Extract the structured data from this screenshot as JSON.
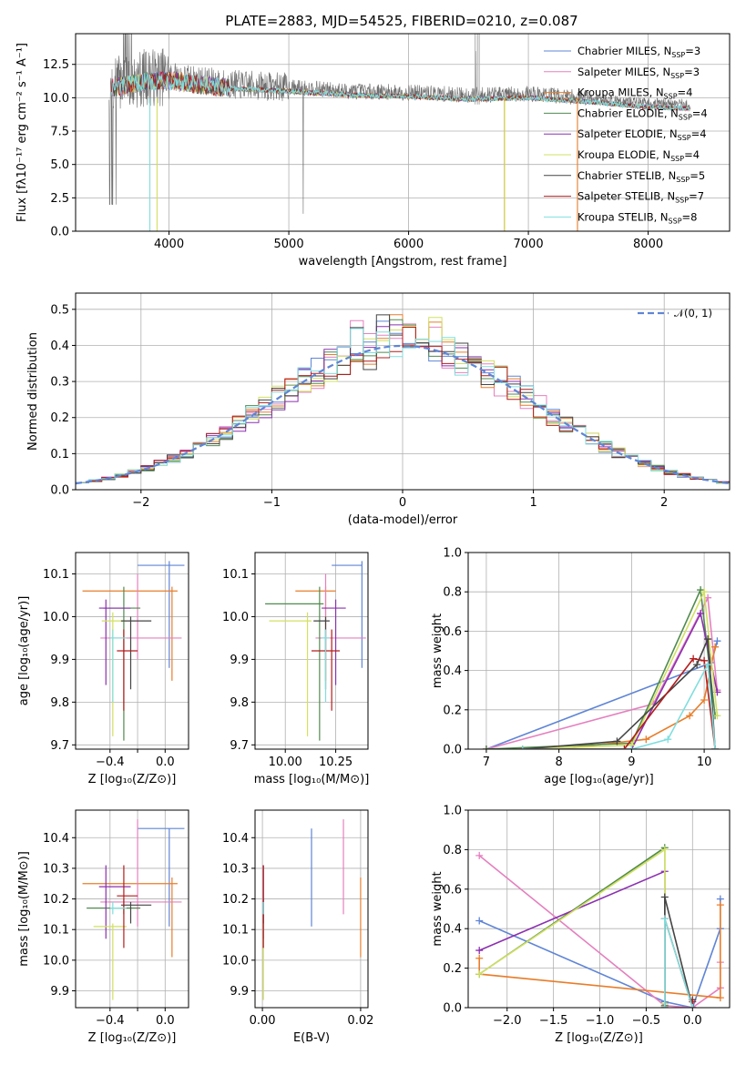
{
  "title": "PLATE=2883, MJD=54525, FIBERID=0210, z=0.087",
  "models": [
    {
      "key": "cm",
      "label": "Chabrier MILES, N",
      "sub": "SSP",
      "n": "=3",
      "color": "#5f85d6"
    },
    {
      "key": "sm",
      "label": "Salpeter MILES, N",
      "sub": "SSP",
      "n": "=3",
      "color": "#e580bf"
    },
    {
      "key": "km",
      "label": "Kroupa MILES, N",
      "sub": "SSP",
      "n": "=4",
      "color": "#e87d2a"
    },
    {
      "key": "ce",
      "label": "Chabrier ELODIE, N",
      "sub": "SSP",
      "n": "=4",
      "color": "#4f8a4f"
    },
    {
      "key": "se",
      "label": "Salpeter ELODIE, N",
      "sub": "SSP",
      "n": "=4",
      "color": "#8b30b0"
    },
    {
      "key": "ke",
      "label": "Kroupa ELODIE, N",
      "sub": "SSP",
      "n": "=4",
      "color": "#d2e060"
    },
    {
      "key": "cs",
      "label": "Chabrier STELIB, N",
      "sub": "SSP",
      "n": "=5",
      "color": "#444444"
    },
    {
      "key": "ss",
      "label": "Salpeter STELIB, N",
      "sub": "SSP",
      "n": "=7",
      "color": "#b41c1c"
    },
    {
      "key": "ks",
      "label": "Kroupa STELIB, N",
      "sub": "SSP",
      "n": "=8",
      "color": "#80dede"
    }
  ],
  "chart_data": [
    {
      "id": "spectrum",
      "type": "line",
      "xlabel": "wavelength [Angstrom, rest frame]",
      "ylabel": "Flux [fλ10⁻¹⁷ erg cm⁻² s⁻¹ A⁻¹]",
      "xlim": [
        3220,
        8680
      ],
      "ylim": [
        0,
        14.8
      ],
      "xticks": [
        4000,
        5000,
        6000,
        7000,
        8000
      ],
      "yticks": [
        0.0,
        2.5,
        5.0,
        7.5,
        10.0,
        12.5
      ],
      "data_range": [
        3500,
        8350
      ],
      "continuum": [
        [
          3500,
          11.0
        ],
        [
          3800,
          11.5
        ],
        [
          4000,
          11.6
        ],
        [
          4500,
          11.0
        ],
        [
          5000,
          10.8
        ],
        [
          5500,
          10.5
        ],
        [
          6000,
          10.4
        ],
        [
          6500,
          10.2
        ],
        [
          7000,
          10.3
        ],
        [
          7500,
          10.0
        ],
        [
          8000,
          9.6
        ],
        [
          8350,
          9.5
        ]
      ]
    },
    {
      "id": "residuals",
      "type": "histogram",
      "xlabel": "(data-model)/error",
      "ylabel": "Normed distribution",
      "xlim": [
        -2.5,
        2.5
      ],
      "ylim": [
        0,
        0.545
      ],
      "xticks": [
        -2,
        -1,
        0,
        1,
        2
      ],
      "yticks": [
        0.0,
        0.1,
        0.2,
        0.3,
        0.4,
        0.5
      ],
      "bin_width": 0.1,
      "gaussian_label": "𝒩(0, 1)",
      "gaussian_color": "#5f85d6"
    },
    {
      "id": "z-age",
      "type": "errorbar",
      "xlabel": "Z [log₁₀(Z/Z⊙)]",
      "ylabel": "age  [log₁₀(age/yr)]",
      "xlim": [
        -0.65,
        0.17
      ],
      "ylim": [
        9.69,
        10.15
      ],
      "xticks": [
        -0.4,
        -0.2,
        0.0
      ],
      "xticklabels": [
        "−0.4",
        "",
        "0.0"
      ],
      "yticks": [
        9.7,
        9.8,
        9.9,
        10.0,
        10.1
      ],
      "points": [
        {
          "m": "cm",
          "x": 0.03,
          "y": 10.12,
          "xlo": -0.2,
          "xhi": 0.14,
          "ylo": 9.88,
          "yhi": 10.13
        },
        {
          "m": "km",
          "x": 0.05,
          "y": 10.06,
          "xlo": -0.6,
          "xhi": 0.09,
          "ylo": 9.85,
          "yhi": 10.07
        },
        {
          "m": "sm",
          "x": -0.2,
          "y": 9.95,
          "xlo": -0.47,
          "xhi": 0.12,
          "ylo": 9.9,
          "yhi": 10.1
        },
        {
          "m": "ce",
          "x": -0.3,
          "y": 10.02,
          "xlo": -0.45,
          "xhi": -0.18,
          "ylo": 9.71,
          "yhi": 10.07
        },
        {
          "m": "se",
          "x": -0.43,
          "y": 10.02,
          "xlo": -0.48,
          "xhi": -0.25,
          "ylo": 9.84,
          "yhi": 10.04
        },
        {
          "m": "ke",
          "x": -0.38,
          "y": 9.99,
          "xlo": -0.46,
          "xhi": -0.28,
          "ylo": 9.72,
          "yhi": 10.01
        },
        {
          "m": "cs",
          "x": -0.25,
          "y": 9.99,
          "xlo": -0.32,
          "xhi": -0.1,
          "ylo": 9.83,
          "yhi": 10.0
        },
        {
          "m": "ss",
          "x": -0.3,
          "y": 9.92,
          "xlo": -0.35,
          "xhi": -0.2,
          "ylo": 9.78,
          "yhi": 9.97
        },
        {
          "m": "ks",
          "x": -0.38,
          "y": 9.95,
          "xlo": -0.4,
          "xhi": -0.28,
          "ylo": 9.8,
          "yhi": 9.97
        }
      ]
    },
    {
      "id": "mass-age",
      "type": "errorbar",
      "xlabel": "mass [log₁₀(M/M⊙)]",
      "ylabel": "",
      "xlim": [
        9.85,
        10.41
      ],
      "ylim": [
        9.69,
        10.15
      ],
      "xticks": [
        10.0,
        10.25
      ],
      "xticklabels": [
        "10.00",
        "10.25"
      ],
      "yticks": [
        9.7,
        9.8,
        9.9,
        10.0,
        10.1
      ],
      "points": [
        {
          "m": "cm",
          "x": 10.38,
          "y": 10.12,
          "xlo": 10.23,
          "xhi": 10.38,
          "ylo": 9.88,
          "yhi": 10.13
        },
        {
          "m": "km",
          "x": 10.2,
          "y": 10.06,
          "xlo": 10.05,
          "xhi": 10.25,
          "ylo": 9.85,
          "yhi": 10.07
        },
        {
          "m": "sm",
          "x": 10.2,
          "y": 9.95,
          "xlo": 10.15,
          "xhi": 10.4,
          "ylo": 9.9,
          "yhi": 10.1
        },
        {
          "m": "ce",
          "x": 10.17,
          "y": 10.03,
          "xlo": 9.9,
          "xhi": 10.19,
          "ylo": 9.71,
          "yhi": 10.07
        },
        {
          "m": "se",
          "x": 10.25,
          "y": 10.02,
          "xlo": 10.18,
          "xhi": 10.3,
          "ylo": 9.84,
          "yhi": 10.04
        },
        {
          "m": "ke",
          "x": 10.11,
          "y": 9.99,
          "xlo": 9.92,
          "xhi": 10.13,
          "ylo": 9.72,
          "yhi": 10.01
        },
        {
          "m": "cs",
          "x": 10.2,
          "y": 9.99,
          "xlo": 10.14,
          "xhi": 10.22,
          "ylo": 9.83,
          "yhi": 10.0
        },
        {
          "m": "ss",
          "x": 10.23,
          "y": 9.92,
          "xlo": 10.13,
          "xhi": 10.27,
          "ylo": 9.78,
          "yhi": 9.97
        },
        {
          "m": "ks",
          "x": 10.2,
          "y": 9.95,
          "xlo": 10.18,
          "xhi": 10.22,
          "ylo": 9.8,
          "yhi": 9.97
        }
      ]
    },
    {
      "id": "age-weight",
      "type": "line",
      "xlabel": "age  [log₁₀(age/yr)]",
      "ylabel": "mass weight",
      "xlim": [
        6.75,
        10.35
      ],
      "ylim": [
        0,
        1.0
      ],
      "xticks": [
        7,
        8,
        9,
        10
      ],
      "yticks": [
        0.0,
        0.2,
        0.4,
        0.6,
        0.8,
        1.0
      ],
      "series": [
        {
          "m": "cm",
          "x": [
            7.0,
            10.1,
            10.18
          ],
          "y": [
            0.0,
            0.44,
            0.55
          ]
        },
        {
          "m": "sm",
          "x": [
            7.0,
            9.3,
            10.05,
            10.18
          ],
          "y": [
            0.0,
            0.23,
            0.77,
            0.3
          ]
        },
        {
          "m": "km",
          "x": [
            7.0,
            8.0,
            9.2,
            9.8,
            10.0,
            10.15
          ],
          "y": [
            0.0,
            0.0,
            0.05,
            0.17,
            0.25,
            0.52
          ]
        },
        {
          "m": "ce",
          "x": [
            7.0,
            9.0,
            9.95,
            10.15
          ],
          "y": [
            0.0,
            0.03,
            0.81,
            0.17
          ]
        },
        {
          "m": "se",
          "x": [
            7.5,
            9.0,
            9.95,
            10.18
          ],
          "y": [
            0.0,
            0.0,
            0.69,
            0.29
          ]
        },
        {
          "m": "ke",
          "x": [
            7.5,
            9.0,
            10.0,
            10.18
          ],
          "y": [
            0.0,
            0.02,
            0.8,
            0.17
          ]
        },
        {
          "m": "cs",
          "x": [
            7.5,
            8.8,
            9.9,
            10.05,
            10.15
          ],
          "y": [
            0.0,
            0.04,
            0.43,
            0.56,
            0.0
          ]
        },
        {
          "m": "ss",
          "x": [
            7.5,
            8.9,
            9.85,
            10.0,
            10.15
          ],
          "y": [
            0.0,
            0.0,
            0.46,
            0.45,
            0.0
          ]
        },
        {
          "m": "ks",
          "x": [
            7.5,
            9.0,
            9.5,
            10.05,
            10.15
          ],
          "y": [
            0.0,
            0.0,
            0.05,
            0.43,
            0.0
          ]
        }
      ]
    },
    {
      "id": "z-mass",
      "type": "errorbar",
      "xlabel": "Z [log₁₀(Z/Z⊙)]",
      "ylabel": "mass [log₁₀(M/M⊙)]",
      "xlim": [
        -0.65,
        0.17
      ],
      "ylim": [
        9.845,
        10.49
      ],
      "xticks": [
        -0.4,
        -0.2,
        0.0
      ],
      "xticklabels": [
        "−0.4",
        "",
        "0.0"
      ],
      "yticks": [
        9.9,
        10.0,
        10.1,
        10.2,
        10.3,
        10.4
      ],
      "points": [
        {
          "m": "cm",
          "x": 0.03,
          "y": 10.43,
          "xlo": -0.2,
          "xhi": 0.14,
          "ylo": 10.11,
          "yhi": 10.43
        },
        {
          "m": "km",
          "x": 0.05,
          "y": 10.25,
          "xlo": -0.6,
          "xhi": 0.09,
          "ylo": 10.01,
          "yhi": 10.27
        },
        {
          "m": "sm",
          "x": -0.2,
          "y": 10.19,
          "xlo": -0.47,
          "xhi": 0.12,
          "ylo": 10.11,
          "yhi": 10.46
        },
        {
          "m": "ce",
          "x": -0.3,
          "y": 10.17,
          "xlo": -0.57,
          "xhi": -0.18,
          "ylo": 10.15,
          "yhi": 10.2
        },
        {
          "m": "se",
          "x": -0.43,
          "y": 10.24,
          "xlo": -0.48,
          "xhi": -0.25,
          "ylo": 10.07,
          "yhi": 10.31
        },
        {
          "m": "ke",
          "x": -0.38,
          "y": 10.11,
          "xlo": -0.52,
          "xhi": -0.28,
          "ylo": 9.87,
          "yhi": 10.12
        },
        {
          "m": "cs",
          "x": -0.25,
          "y": 10.18,
          "xlo": -0.32,
          "xhi": -0.1,
          "ylo": 10.12,
          "yhi": 10.19
        },
        {
          "m": "ss",
          "x": -0.3,
          "y": 10.21,
          "xlo": -0.35,
          "xhi": -0.2,
          "ylo": 10.04,
          "yhi": 10.31
        },
        {
          "m": "ks",
          "x": -0.38,
          "y": 10.17,
          "xlo": -0.4,
          "xhi": -0.28,
          "ylo": 10.15,
          "yhi": 10.19
        }
      ]
    },
    {
      "id": "ebv-mass",
      "type": "errorbar",
      "xlabel": "E(B-V)",
      "ylabel": "",
      "xlim": [
        -0.0015,
        0.0215
      ],
      "ylim": [
        9.845,
        10.49
      ],
      "xticks": [
        0.0,
        0.02
      ],
      "xticklabels": [
        "0.00",
        "0.02"
      ],
      "yticks": [
        9.9,
        10.0,
        10.1,
        10.2,
        10.3,
        10.4
      ],
      "points": [
        {
          "m": "cm",
          "x": 0.01,
          "y": 10.27,
          "ylo": 10.11,
          "yhi": 10.43
        },
        {
          "m": "sm",
          "x": 0.0165,
          "y": 10.3,
          "ylo": 10.15,
          "yhi": 10.46
        },
        {
          "m": "km",
          "x": 0.02,
          "y": 10.14,
          "ylo": 10.01,
          "yhi": 10.27
        },
        {
          "m": "ce",
          "x": 0.0002,
          "y": 10.17,
          "ylo": 10.15,
          "yhi": 10.2
        },
        {
          "m": "se",
          "x": 0.0002,
          "y": 10.25,
          "ylo": 10.07,
          "yhi": 10.31
        },
        {
          "m": "ke",
          "x": 0.0002,
          "y": 10.0,
          "ylo": 9.87,
          "yhi": 10.12
        },
        {
          "m": "cs",
          "x": 0.0002,
          "y": 10.15,
          "ylo": 10.12,
          "yhi": 10.19
        },
        {
          "m": "ss",
          "x": 0.0002,
          "y": 10.18,
          "ylo": 10.04,
          "yhi": 10.31
        },
        {
          "m": "ks",
          "x": 0.0002,
          "y": 10.17,
          "ylo": 10.15,
          "yhi": 10.19
        }
      ]
    },
    {
      "id": "z-weight",
      "type": "line",
      "xlabel": "Z [log₁₀(Z/Z⊙)]",
      "ylabel": "mass weight",
      "xlim": [
        -2.42,
        0.4
      ],
      "ylim": [
        0,
        1.0
      ],
      "xticks": [
        -2.0,
        -1.5,
        -1.0,
        -0.5,
        0.0
      ],
      "xticklabels": [
        "−2.0",
        "−1.5",
        "−1.0",
        "−0.5",
        "0.0"
      ],
      "yticks": [
        0.0,
        0.2,
        0.4,
        0.6,
        0.8,
        1.0
      ],
      "series": [
        {
          "m": "cm",
          "x": [
            -2.3,
            -0.3,
            0.0,
            0.3,
            0.3
          ],
          "y": [
            0.44,
            0.03,
            0.0,
            0.4,
            0.55
          ]
        },
        {
          "m": "sm",
          "x": [
            -2.3,
            -0.3,
            0.0,
            0.3,
            0.3
          ],
          "y": [
            0.77,
            0.01,
            0.0,
            0.1,
            0.23
          ]
        },
        {
          "m": "km",
          "x": [
            -2.3,
            -2.3,
            0.3,
            0.3
          ],
          "y": [
            0.25,
            0.17,
            0.05,
            0.52
          ]
        },
        {
          "m": "ce",
          "x": [
            -2.3,
            -0.3,
            -0.3
          ],
          "y": [
            0.17,
            0.81,
            0.01
          ]
        },
        {
          "m": "se",
          "x": [
            -2.3,
            -0.3,
            -0.3
          ],
          "y": [
            0.29,
            0.69,
            0.02
          ]
        },
        {
          "m": "ke",
          "x": [
            -2.3,
            -0.3,
            -0.3
          ],
          "y": [
            0.17,
            0.8,
            0.02
          ]
        },
        {
          "m": "cs",
          "x": [
            -0.3,
            -0.3,
            0.0,
            0.0
          ],
          "y": [
            0.0,
            0.56,
            0.0,
            0.04
          ]
        },
        {
          "m": "ss",
          "x": [
            -0.3,
            -0.3,
            0.0,
            0.0
          ],
          "y": [
            0.0,
            0.45,
            0.0,
            0.03
          ]
        },
        {
          "m": "ks",
          "x": [
            -0.3,
            -0.3,
            0.0
          ],
          "y": [
            0.0,
            0.45,
            0.0
          ]
        }
      ]
    }
  ]
}
